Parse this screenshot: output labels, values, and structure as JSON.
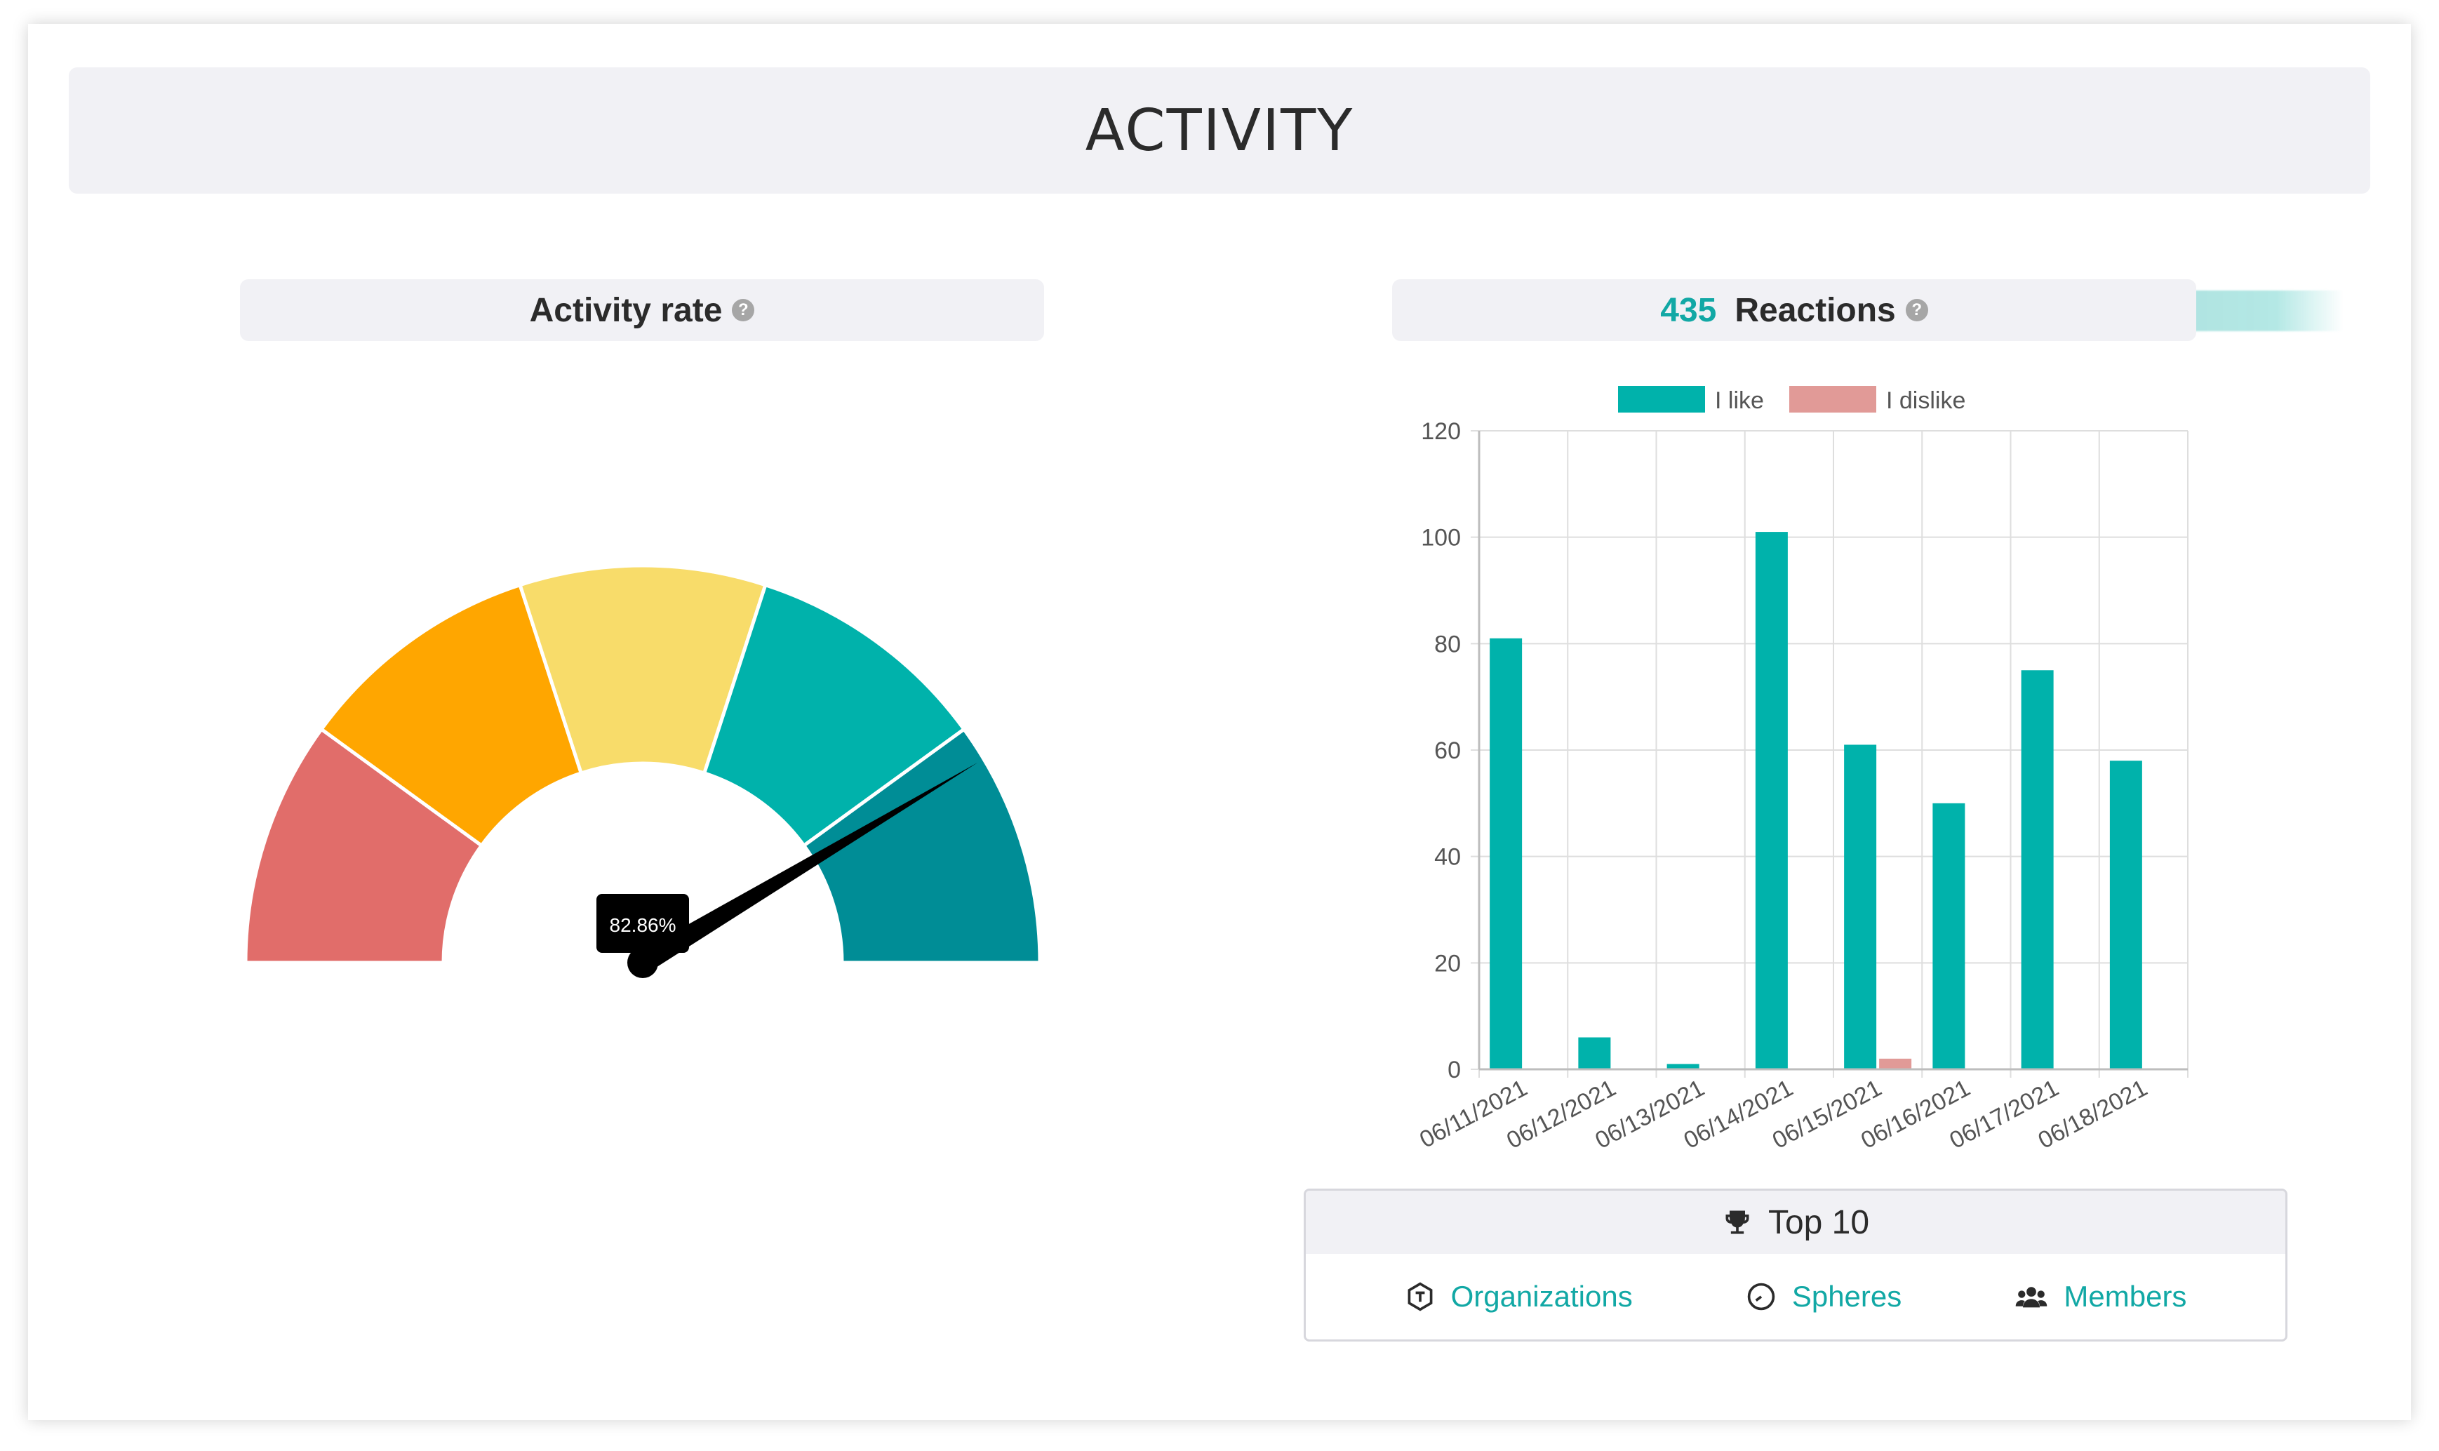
{
  "section": {
    "title": "ACTIVITY"
  },
  "activity": {
    "title": "Activity rate",
    "help_icon": "question-circle-icon",
    "gauge": {
      "value_label": "82.86%",
      "value": 82.86,
      "min": 0,
      "max": 100,
      "segment_colors": [
        "#e16d6a",
        "#ffa600",
        "#f8dc6a",
        "#00b2ab",
        "#008d96"
      ]
    }
  },
  "reactions": {
    "count": "435",
    "title": "Reactions",
    "help_icon": "question-circle-icon"
  },
  "chart_data": {
    "type": "bar",
    "categories": [
      "06/11/2021",
      "06/12/2021",
      "06/13/2021",
      "06/14/2021",
      "06/15/2021",
      "06/16/2021",
      "06/17/2021",
      "06/18/2021"
    ],
    "series": [
      {
        "name": "I like",
        "color": "#00b2ab",
        "values": [
          81,
          6,
          1,
          101,
          61,
          50,
          75,
          58
        ]
      },
      {
        "name": "I dislike",
        "color": "#e19a97",
        "values": [
          0,
          0,
          0,
          0,
          2,
          0,
          0,
          0
        ]
      }
    ],
    "ylim": [
      0,
      120
    ],
    "yticks": [
      "0",
      "20",
      "40",
      "60",
      "80",
      "100",
      "120"
    ],
    "legend": "top",
    "grid": true
  },
  "top10": {
    "title": "Top 10",
    "icon": "trophy-icon",
    "links": [
      {
        "label": "Organizations",
        "icon": "organization-hexagon-icon"
      },
      {
        "label": "Spheres",
        "icon": "sphere-clock-icon"
      },
      {
        "label": "Members",
        "icon": "members-group-icon"
      }
    ]
  }
}
